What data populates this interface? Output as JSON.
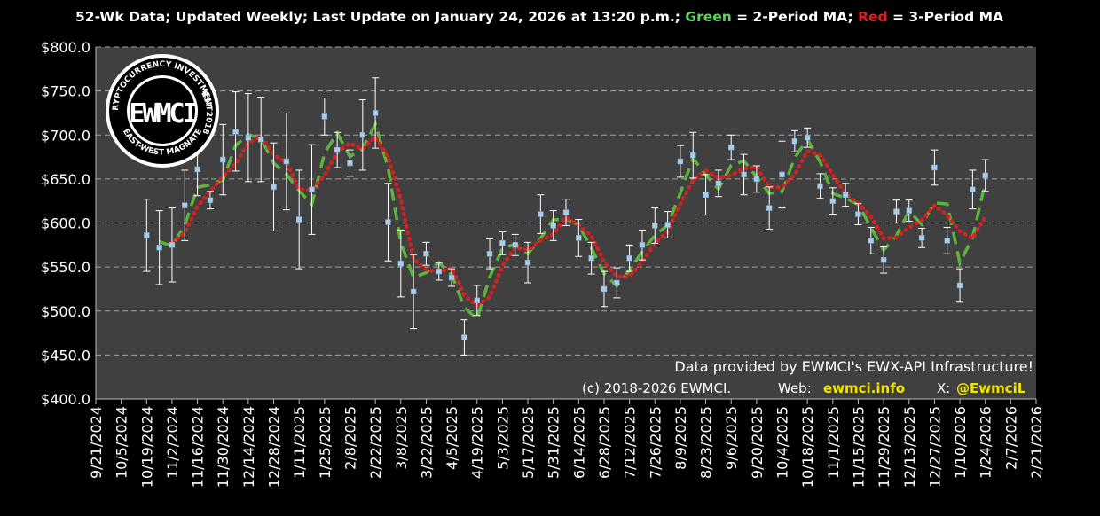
{
  "chart_data": {
    "type": "errorbar",
    "title_parts": [
      {
        "text": "52-Wk Data; Updated Weekly; Last Update on January 24, 2026 at 13:20 p.m.; ",
        "color": "#ffffff"
      },
      {
        "text": "Green",
        "color": "#5fd35f"
      },
      {
        "text": " = 2-Period MA; ",
        "color": "#ffffff"
      },
      {
        "text": "Red",
        "color": "#e02020"
      },
      {
        "text": " = 3-Period MA",
        "color": "#ffffff"
      }
    ],
    "annotations": [
      {
        "text": "Data provided by EWMCI's EWX-API Infrastructure!",
        "color": "#ffffff"
      },
      {
        "text": "(c) 2018-2026 EWMCI.",
        "color": "#ffffff"
      },
      {
        "text": "Web:",
        "color": "#ffffff"
      },
      {
        "text": "ewmci.info",
        "color": "#f2e600"
      },
      {
        "text": "X:",
        "color": "#ffffff"
      },
      {
        "text": "@EwmciL",
        "color": "#f2e600"
      }
    ],
    "logo": {
      "main": "EWMCI",
      "top": "CRYPTOCURRENCY INVESTMENTS",
      "right": "EST 2018",
      "bottom": "EAST-WEST MAGNATE"
    },
    "x": [
      "10/19/2024",
      "10/26/2024",
      "11/2/2024",
      "11/9/2024",
      "11/16/2024",
      "11/23/2024",
      "11/30/2024",
      "12/7/2024",
      "12/14/2024",
      "12/21/2024",
      "12/28/2024",
      "1/4/2025",
      "1/11/2025",
      "1/18/2025",
      "1/25/2025",
      "2/1/2025",
      "2/8/2025",
      "2/15/2025",
      "2/22/2025",
      "3/1/2025",
      "3/8/2025",
      "3/15/2025",
      "3/22/2025",
      "3/29/2025",
      "4/5/2025",
      "4/12/2025",
      "4/19/2025",
      "4/26/2025",
      "5/3/2025",
      "5/10/2025",
      "5/17/2025",
      "5/24/2025",
      "5/31/2025",
      "6/7/2025",
      "6/14/2025",
      "6/21/2025",
      "6/28/2025",
      "7/5/2025",
      "7/12/2025",
      "7/19/2025",
      "7/26/2025",
      "8/2/2025",
      "8/9/2025",
      "8/16/2025",
      "8/23/2025",
      "8/30/2025",
      "9/6/2025",
      "9/13/2025",
      "9/20/2025",
      "9/27/2025",
      "10/4/2025",
      "10/11/2025",
      "10/18/2025",
      "10/25/2025",
      "11/1/2025",
      "11/8/2025",
      "11/15/2025",
      "11/22/2025",
      "11/29/2025",
      "12/6/2025",
      "12/13/2025",
      "12/20/2025",
      "12/27/2025",
      "1/3/2026",
      "1/10/2026",
      "1/17/2026",
      "1/24/2026"
    ],
    "values": [
      586,
      572,
      575,
      620,
      661,
      626,
      672,
      704,
      697,
      695,
      641,
      670,
      604,
      638,
      721,
      683,
      668,
      700,
      725,
      601,
      554,
      522,
      565,
      545,
      538,
      470,
      512,
      565,
      577,
      575,
      555,
      610,
      597,
      612,
      583,
      560,
      525,
      532,
      560,
      575,
      597,
      598,
      670,
      677,
      632,
      645,
      686,
      655,
      650,
      617,
      655,
      693,
      697,
      642,
      625,
      632,
      610,
      580,
      558,
      613,
      614,
      583,
      663,
      580,
      529,
      638,
      654
    ],
    "errors": [
      41,
      42,
      42,
      40,
      30,
      10,
      40,
      45,
      50,
      48,
      50,
      55,
      56,
      51,
      21,
      20,
      15,
      40,
      40,
      44,
      38,
      42,
      13,
      10,
      10,
      20,
      17,
      17,
      13,
      12,
      23,
      22,
      17,
      15,
      21,
      18,
      20,
      17,
      15,
      17,
      20,
      15,
      18,
      26,
      23,
      15,
      14,
      23,
      15,
      24,
      38,
      12,
      11,
      14,
      15,
      13,
      12,
      15,
      15,
      13,
      12,
      11,
      20,
      15,
      19,
      22,
      18
    ],
    "point_color": "#a9cde8",
    "error_color": "#ffffff",
    "series": [
      {
        "color": "#5db33b",
        "style": "dashed",
        "values": [
          null,
          579,
          573.5,
          597.5,
          640.5,
          643.5,
          649,
          688,
          700.5,
          696,
          668,
          655.5,
          637,
          621,
          679.5,
          702,
          675.5,
          684,
          712.5,
          663,
          577.5,
          538,
          543.5,
          555,
          541.5,
          504,
          491,
          538.5,
          571,
          576,
          565,
          582.5,
          603.5,
          604.5,
          597.5,
          571.5,
          542.5,
          528.5,
          546,
          567.5,
          586,
          597.5,
          634,
          673.5,
          654.5,
          638.5,
          665.5,
          670.5,
          652.5,
          633.5,
          636,
          674,
          695,
          669.5,
          633.5,
          628.5,
          621,
          595,
          569,
          585.5,
          613.5,
          598.5,
          623,
          621.5,
          554.5,
          583.5,
          646
        ]
      },
      {
        "color": "#d42020",
        "style": "dotted",
        "values": [
          null,
          null,
          577.7,
          589,
          618.7,
          635.7,
          653,
          667.3,
          691,
          698.7,
          677.7,
          668.7,
          638.3,
          637.3,
          654.3,
          680.7,
          690.7,
          683.7,
          697.7,
          675.3,
          626.7,
          559,
          547,
          544,
          549.3,
          517.7,
          506.7,
          515.7,
          551.3,
          572.3,
          569,
          580,
          587.3,
          606.3,
          597.3,
          585,
          556,
          539,
          539,
          555.7,
          577.3,
          590,
          621.7,
          648.3,
          659.7,
          651.3,
          654.3,
          662,
          663.7,
          640.7,
          640.7,
          655,
          681.7,
          677.3,
          654.7,
          633,
          622.3,
          607.3,
          582.7,
          583.7,
          595,
          603.3,
          620,
          608.7,
          590.7,
          582.3,
          607
        ]
      }
    ],
    "xlim": [
      "9/21/2024",
      "2/21/2026"
    ],
    "xticks": [
      "9/21/2024",
      "10/5/2024",
      "10/19/2024",
      "11/2/2024",
      "11/16/2024",
      "11/30/2024",
      "12/14/2024",
      "12/28/2024",
      "1/11/2025",
      "1/25/2025",
      "2/8/2025",
      "2/22/2025",
      "3/8/2025",
      "3/22/2025",
      "4/5/2025",
      "4/19/2025",
      "5/3/2025",
      "5/17/2025",
      "5/31/2025",
      "6/14/2025",
      "6/28/2025",
      "7/12/2025",
      "7/26/2025",
      "8/9/2025",
      "8/23/2025",
      "9/6/2025",
      "9/20/2025",
      "10/4/2025",
      "10/18/2025",
      "11/1/2025",
      "11/15/2025",
      "11/29/2025",
      "12/13/2025",
      "12/27/2025",
      "1/10/2026",
      "1/24/2026",
      "2/7/2026",
      "2/21/2026"
    ],
    "ylim": [
      400,
      800
    ],
    "yticks": [
      {
        "value": 400,
        "label": "$400.0"
      },
      {
        "value": 450,
        "label": "$450.0"
      },
      {
        "value": 500,
        "label": "$500.0"
      },
      {
        "value": 550,
        "label": "$550.0"
      },
      {
        "value": 600,
        "label": "$600.0"
      },
      {
        "value": 650,
        "label": "$650.0"
      },
      {
        "value": 700,
        "label": "$700.0"
      },
      {
        "value": 750,
        "label": "$750.0"
      },
      {
        "value": 800,
        "label": "$800.0"
      }
    ],
    "grid": true
  }
}
